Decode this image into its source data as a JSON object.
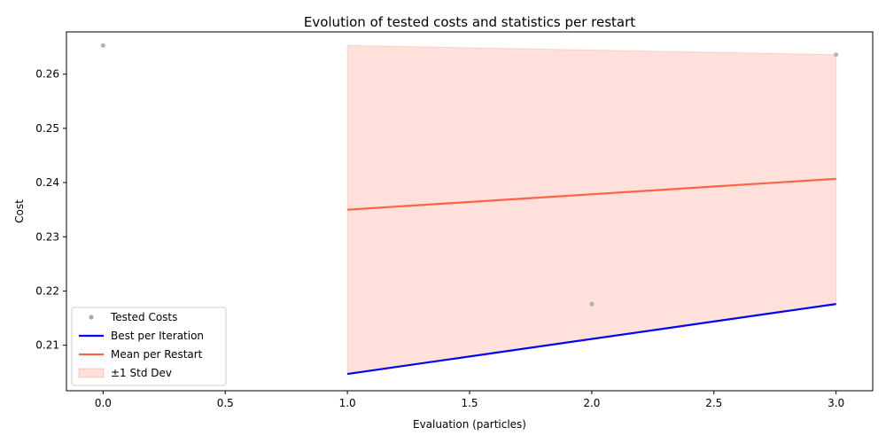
{
  "chart_data": {
    "type": "line",
    "title": "Evolution of tested costs and statistics per restart",
    "xlabel": "Evaluation (particles)",
    "ylabel": "Cost",
    "xlim": [
      -0.15,
      3.15
    ],
    "ylim": [
      0.2016,
      0.2678
    ],
    "x_ticks": [
      0.0,
      0.5,
      1.0,
      1.5,
      2.0,
      2.5,
      3.0
    ],
    "x_tick_labels": [
      "0.0",
      "0.5",
      "1.0",
      "1.5",
      "2.0",
      "2.5",
      "3.0"
    ],
    "y_ticks": [
      0.21,
      0.22,
      0.23,
      0.24,
      0.25,
      0.26
    ],
    "y_tick_labels": [
      "0.21",
      "0.22",
      "0.23",
      "0.24",
      "0.25",
      "0.26"
    ],
    "grid": false,
    "legend_position": "lower-left",
    "tested_costs": {
      "name": "Tested Costs",
      "color": "#a9a9a9",
      "x": [
        0,
        2,
        3
      ],
      "y": [
        0.2653,
        0.2176,
        0.2636
      ]
    },
    "series": [
      {
        "name": "Best per Iteration",
        "color": "#0000ff",
        "x": [
          1,
          3
        ],
        "y": [
          0.2047,
          0.2176
        ]
      },
      {
        "name": "Mean per Restart",
        "color": "#ff6347",
        "x": [
          1,
          3
        ],
        "y": [
          0.235,
          0.2407
        ]
      }
    ],
    "band": {
      "name": "±1 Std Dev",
      "color": "#ff6347",
      "x": [
        1,
        3
      ],
      "lower": [
        0.2047,
        0.2176
      ],
      "upper": [
        0.2653,
        0.2636
      ]
    }
  }
}
